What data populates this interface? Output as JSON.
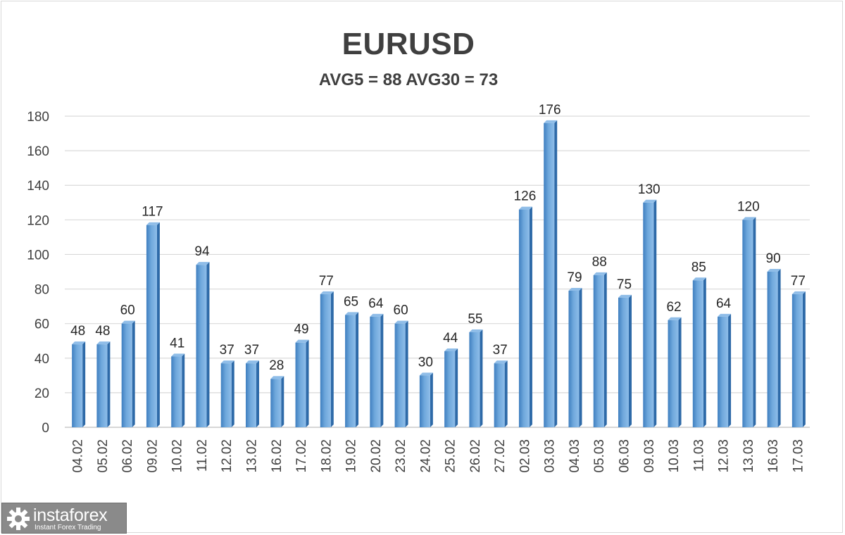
{
  "chart_data": {
    "type": "bar",
    "title": "EURUSD",
    "subtitle": "AVG5 = 88 AVG30 = 73",
    "xlabel": "",
    "ylabel": "",
    "ylim": [
      0,
      180
    ],
    "yticks": [
      0,
      20,
      40,
      60,
      80,
      100,
      120,
      140,
      160,
      180
    ],
    "grid": true,
    "legend": "none",
    "bar_color": "#5b9bd5",
    "categories": [
      "04.02",
      "05.02",
      "06.02",
      "09.02",
      "10.02",
      "11.02",
      "12.02",
      "13.02",
      "16.02",
      "17.02",
      "18.02",
      "19.02",
      "20.02",
      "23.02",
      "24.02",
      "25.02",
      "26.02",
      "27.02",
      "02.03",
      "03.03",
      "04.03",
      "05.03",
      "06.03",
      "09.03",
      "10.03",
      "11.03",
      "12.03",
      "13.03",
      "16.03",
      "17.03"
    ],
    "values": [
      48,
      48,
      60,
      117,
      41,
      94,
      37,
      37,
      28,
      49,
      77,
      65,
      64,
      60,
      30,
      44,
      55,
      37,
      126,
      176,
      79,
      88,
      75,
      130,
      62,
      85,
      64,
      120,
      90,
      77
    ]
  },
  "watermark": {
    "name": "instaforex",
    "tagline": "Instant Forex Trading",
    "icon": "gear-icon"
  }
}
